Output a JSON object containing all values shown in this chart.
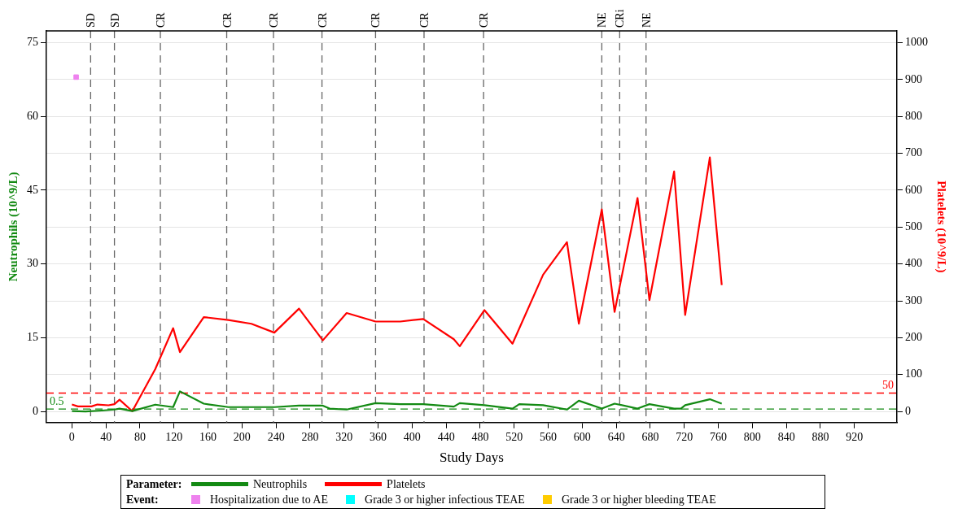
{
  "chart_data": {
    "type": "line",
    "xlabel": "Study Days",
    "ylabel": "Neutrophils (10^9/L)",
    "y2label": "Platelets (10^9/L)",
    "legend_title": "Parameter:",
    "annotations": [
      "Event:"
    ],
    "xlim": [
      -30,
      970
    ],
    "xticks": [
      0,
      40,
      80,
      120,
      160,
      200,
      240,
      280,
      320,
      360,
      400,
      440,
      480,
      520,
      560,
      600,
      640,
      680,
      720,
      760,
      800,
      840,
      880,
      920
    ],
    "ylim": [
      -2.25,
      77.4
    ],
    "yticks": [
      0,
      15,
      30,
      45,
      60,
      75
    ],
    "y2lim": [
      -30,
      1032
    ],
    "y2ticks": [
      0,
      100,
      200,
      300,
      400,
      500,
      600,
      700,
      800,
      900,
      1000
    ],
    "grid": "y",
    "legend": "bottom",
    "line_style": "solid",
    "series": [
      {
        "name": "Neutrophils",
        "color": "#138a13",
        "x": [
          0,
          16,
          35,
          50,
          56,
          71,
          98,
          119,
          127,
          155,
          184,
          238,
          267,
          295,
          303,
          323,
          357,
          386,
          413,
          449,
          456,
          485,
          518,
          526,
          554,
          582,
          596,
          623,
          638,
          665,
          679,
          708,
          716,
          721,
          750,
          764
        ],
        "values": [
          0.1,
          0,
          0.2,
          0.4,
          0.6,
          0.1,
          1.4,
          0.9,
          4.1,
          1.6,
          0.9,
          0.9,
          1.2,
          1.2,
          0.6,
          0.4,
          1.7,
          1.5,
          1.5,
          1,
          1.7,
          1.3,
          0.6,
          1.5,
          1.3,
          0.4,
          2.2,
          0.6,
          1.6,
          0.6,
          1.5,
          0.6,
          0.6,
          1.3,
          2.5,
          1.6
        ]
      },
      {
        "name": "Platelets",
        "color": "#ff0000",
        "axis": "y2",
        "x": [
          0,
          7,
          23,
          30,
          43,
          50,
          56,
          71,
          98,
          119,
          127,
          155,
          184,
          211,
          238,
          267,
          295,
          323,
          357,
          386,
          413,
          449,
          456,
          485,
          518,
          554,
          582,
          596,
          623,
          638,
          665,
          679,
          708,
          721,
          750,
          764
        ],
        "values": [
          19,
          14,
          14,
          19,
          17,
          20,
          32,
          1,
          115,
          226,
          161,
          256,
          248,
          238,
          214,
          279,
          193,
          267,
          244,
          244,
          251,
          196,
          177,
          275,
          184,
          371,
          459,
          238,
          548,
          270,
          579,
          302,
          651,
          262,
          689,
          343
        ]
      },
      {
        "name": "Hospitalization due to AE",
        "type": "scatter",
        "color": "#ee82ee",
        "x": [
          5
        ],
        "values": [
          68
        ]
      },
      {
        "name": "Grade 3 or higher infectious TEAE",
        "type": "scatter",
        "color": "#00ffff"
      },
      {
        "name": "Grade 3 or higher bleeding TEAE",
        "type": "scatter",
        "color": "#ffcc00"
      }
    ],
    "ref_lines": [
      {
        "axis": "y",
        "value": 0.5,
        "label": "0.5",
        "color": "#138a13",
        "line_style": "dashed"
      },
      {
        "axis": "y2",
        "value": 50,
        "label": "50",
        "color": "#ff0000",
        "line_style": "dashed"
      },
      {
        "axis": "x",
        "value": 22,
        "label": "SD",
        "color": "#666666",
        "line_style": "dashed"
      },
      {
        "axis": "x",
        "value": 50,
        "label": "SD",
        "color": "#666666",
        "line_style": "dashed"
      },
      {
        "axis": "x",
        "value": 104,
        "label": "CR",
        "color": "#666666",
        "line_style": "dashed"
      },
      {
        "axis": "x",
        "value": 182,
        "label": "CR",
        "color": "#666666",
        "line_style": "dashed"
      },
      {
        "axis": "x",
        "value": 237,
        "label": "CR",
        "color": "#666666",
        "line_style": "dashed"
      },
      {
        "axis": "x",
        "value": 294,
        "label": "CR",
        "color": "#666666",
        "line_style": "dashed"
      },
      {
        "axis": "x",
        "value": 357,
        "label": "CR",
        "color": "#666666",
        "line_style": "dashed"
      },
      {
        "axis": "x",
        "value": 414,
        "label": "CR",
        "color": "#666666",
        "line_style": "dashed"
      },
      {
        "axis": "x",
        "value": 484,
        "label": "CR",
        "color": "#666666",
        "line_style": "dashed"
      },
      {
        "axis": "x",
        "value": 623,
        "label": "NE",
        "color": "#666666",
        "line_style": "dashed"
      },
      {
        "axis": "x",
        "value": 644,
        "label": "CRi",
        "color": "#666666",
        "line_style": "dashed"
      },
      {
        "axis": "x",
        "value": 675,
        "label": "NE",
        "color": "#666666",
        "line_style": "dashed"
      }
    ]
  }
}
